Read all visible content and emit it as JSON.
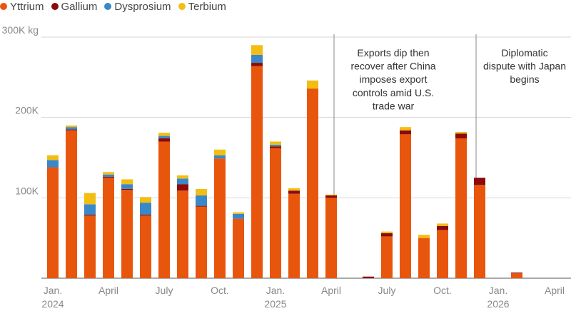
{
  "chart_data": {
    "type": "bar",
    "stacked": true,
    "title": "",
    "xlabel": "",
    "ylabel": "",
    "ylim": [
      0,
      300000
    ],
    "y_ticks": [
      {
        "value": 100000,
        "label": "100K"
      },
      {
        "value": 200000,
        "label": "200K"
      },
      {
        "value": 300000,
        "label": "300K kg"
      }
    ],
    "grid": true,
    "legend_position": "top-left",
    "months": [
      "2024-01",
      "2024-02",
      "2024-03",
      "2024-04",
      "2024-05",
      "2024-06",
      "2024-07",
      "2024-08",
      "2024-09",
      "2024-10",
      "2024-11",
      "2024-12",
      "2025-01",
      "2025-02",
      "2025-03",
      "2025-04",
      "2025-05",
      "2025-06",
      "2025-07",
      "2025-08",
      "2025-09",
      "2025-10",
      "2025-11",
      "2025-12",
      "2026-01",
      "2026-02",
      "2026-03"
    ],
    "x_ticks": [
      {
        "month": "2024-01",
        "label": "Jan.",
        "year": "2024"
      },
      {
        "month": "2024-04",
        "label": "April",
        "year": ""
      },
      {
        "month": "2024-07",
        "label": "July",
        "year": ""
      },
      {
        "month": "2024-10",
        "label": "Oct.",
        "year": ""
      },
      {
        "month": "2025-01",
        "label": "Jan.",
        "year": "2025"
      },
      {
        "month": "2025-04",
        "label": "April",
        "year": ""
      },
      {
        "month": "2025-07",
        "label": "July",
        "year": ""
      },
      {
        "month": "2025-10",
        "label": "Oct.",
        "year": ""
      },
      {
        "month": "2026-01",
        "label": "Jan.",
        "year": "2026"
      },
      {
        "month": "2026-04",
        "label": "April",
        "year": ""
      }
    ],
    "series": [
      {
        "name": "Yttrium",
        "color": "#e8560e",
        "values": [
          138000,
          184000,
          78000,
          125000,
          110000,
          78000,
          170000,
          109000,
          89000,
          149000,
          74000,
          264000,
          162000,
          105000,
          236000,
          100000,
          0,
          0,
          52000,
          179000,
          50000,
          60000,
          174000,
          116000,
          0,
          6000,
          0
        ]
      },
      {
        "name": "Gallium",
        "color": "#8b0a0a",
        "values": [
          0,
          1000,
          1000,
          1000,
          1000,
          1000,
          4000,
          8000,
          1000,
          0,
          0,
          4000,
          2000,
          4000,
          0,
          3000,
          0,
          2000,
          4000,
          5000,
          0,
          5000,
          6000,
          9000,
          0,
          1000,
          0
        ]
      },
      {
        "name": "Dysprosium",
        "color": "#3a88c7",
        "values": [
          9000,
          3000,
          13000,
          3000,
          6000,
          15000,
          3000,
          7000,
          13000,
          4000,
          6000,
          10000,
          2000,
          0,
          0,
          0,
          0,
          0,
          0,
          0,
          0,
          0,
          0,
          0,
          0,
          0,
          0
        ]
      },
      {
        "name": "Terbium",
        "color": "#f2be13",
        "values": [
          6000,
          2000,
          14000,
          3000,
          6000,
          7000,
          4000,
          4000,
          8000,
          7000,
          2000,
          12000,
          4000,
          3000,
          10000,
          1000,
          0,
          0,
          2000,
          4000,
          4000,
          3000,
          2000,
          0,
          0,
          0,
          0
        ]
      }
    ],
    "annotations": [
      {
        "after_month": "2025-04",
        "lines": [
          "Exports dip then",
          "recover after China",
          "imposes export",
          "controls amid U.S.",
          "trade war"
        ]
      },
      {
        "after_month": "2025-11",
        "lines": [
          "Diplomatic",
          "dispute with Japan",
          "begins"
        ]
      }
    ]
  }
}
